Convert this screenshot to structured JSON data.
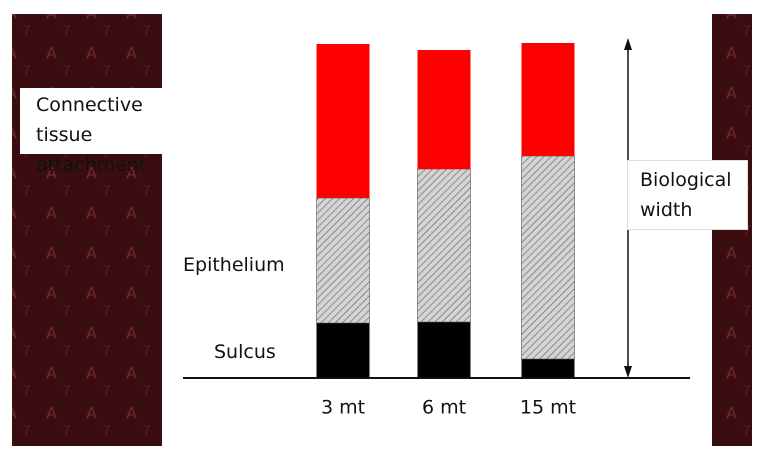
{
  "chart_data": {
    "type": "bar",
    "stacked": true,
    "annotation": "Biological width",
    "categories": [
      "3 mt",
      "6 mt",
      "15 mt"
    ],
    "series": [
      {
        "name": "Sulcus",
        "color": "#000000",
        "values": [
          55,
          56,
          19
        ]
      },
      {
        "name": "Epithelium",
        "color": "#d4d4d4",
        "values": [
          125,
          153,
          203
        ]
      },
      {
        "name": "Connective tissue attachment",
        "color": "#ff0000",
        "values": [
          154,
          119,
          113
        ]
      }
    ]
  }
}
